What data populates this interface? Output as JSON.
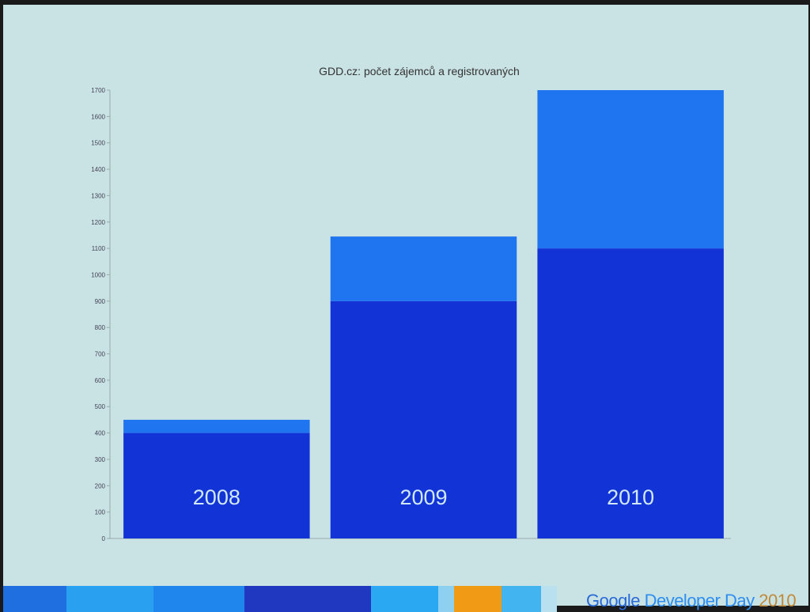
{
  "chart_data": {
    "type": "bar",
    "stacked": true,
    "title": "GDD.cz: počet zájemců a registrovaných",
    "categories": [
      "2008",
      "2009",
      "2010"
    ],
    "series": [
      {
        "values": [
          400,
          900,
          1100
        ],
        "color": "#1234d6"
      },
      {
        "values": [
          50,
          245,
          600
        ],
        "color": "#1f74f0"
      }
    ],
    "ylim": [
      0,
      1700
    ],
    "yticks": [
      0,
      100,
      200,
      300,
      400,
      500,
      600,
      700,
      800,
      900,
      1000,
      1100,
      1200,
      1300,
      1400,
      1500,
      1600,
      1700
    ],
    "category_labels_inside_bars": true,
    "grid": false
  },
  "footer": {
    "brand_google": "Google",
    "brand_developer_day": "Developer Day",
    "brand_year": "2010",
    "colors": {
      "google": "#2a6ad8",
      "developer_day": "#2d8ef0",
      "year": "#c08a3a"
    },
    "stripe_colors": [
      "#1f6fe0",
      "#2aa0f0",
      "#1f86ee",
      "#2038c0",
      "#2aa8f2",
      "#8dd0f0",
      "#f09a16",
      "#42b4f0",
      "#b8e0ee"
    ]
  }
}
